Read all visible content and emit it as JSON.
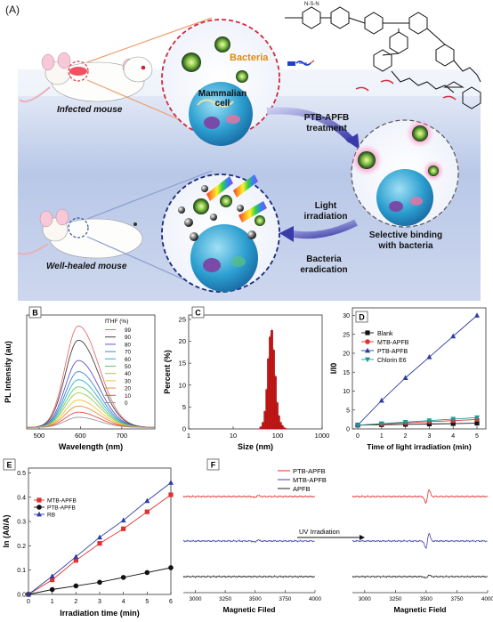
{
  "figure_label": "(A)",
  "panel_a": {
    "bacteria_label": "Bacteria",
    "cell_label": "Mammalian\ncell",
    "infected_label": "Infected mouse",
    "treatment_label": "PTB-APFB\ntreatment",
    "binding_label": "Selective binding\nwith bacteria",
    "light_label": "Light\nirradiation",
    "eradication_label": "Bacteria\neradication",
    "healed_label": "Well-healed mouse"
  },
  "panel_b": {
    "tag": "B",
    "ylabel": "PL Intensity (au)",
    "xlabel": "Wavelength (nm)",
    "xticks": [
      "500",
      "600",
      "700"
    ],
    "legend_title": "fTHF (%)",
    "fractions": [
      "99",
      "90",
      "80",
      "70",
      "60",
      "50",
      "40",
      "30",
      "20",
      "10",
      "0"
    ],
    "colors": [
      "#e76f6f",
      "#444444",
      "#6a4fc4",
      "#3a88d8",
      "#2ab0c8",
      "#60c870",
      "#9ccc4a",
      "#f0c03a",
      "#ef8f3a",
      "#e94b4b",
      "#999999"
    ],
    "chart_data": {
      "type": "line",
      "xlabel": "Wavelength (nm)",
      "ylabel": "PL Intensity (au)",
      "xlim": [
        470,
        780
      ],
      "peak_x": 595,
      "series": [
        {
          "name": "99",
          "peak": 1.0
        },
        {
          "name": "90",
          "peak": 0.86
        },
        {
          "name": "80",
          "peak": 0.66
        },
        {
          "name": "70",
          "peak": 0.55
        },
        {
          "name": "60",
          "peak": 0.47
        },
        {
          "name": "50",
          "peak": 0.4
        },
        {
          "name": "40",
          "peak": 0.34
        },
        {
          "name": "30",
          "peak": 0.27
        },
        {
          "name": "20",
          "peak": 0.21
        },
        {
          "name": "10",
          "peak": 0.15
        },
        {
          "name": "0",
          "peak": 0.1
        }
      ]
    }
  },
  "panel_c": {
    "tag": "C",
    "ylabel": "Percent (%)",
    "xlabel": "Size (nm)",
    "xticks": [
      "1",
      "10",
      "100",
      "1000"
    ],
    "yticks": [
      "0",
      "5",
      "10",
      "15",
      "20",
      "25"
    ],
    "chart_data": {
      "type": "bar",
      "xlabel": "Size (nm)",
      "ylabel": "Percent (%)",
      "ylim": [
        0,
        26
      ],
      "x_scale": "log",
      "categories": [
        42,
        47,
        52,
        57,
        62,
        68,
        74,
        81,
        89,
        97,
        106,
        116,
        127,
        139,
        152
      ],
      "values": [
        0.5,
        1.5,
        4,
        9,
        16,
        21,
        22.5,
        18,
        12,
        6,
        3,
        1.5,
        0.8,
        0.3,
        0.1
      ]
    }
  },
  "panel_d": {
    "tag": "D",
    "ylabel": "I/I0",
    "xlabel": "Time of light irradiation (min)",
    "xticks": [
      "0",
      "1",
      "2",
      "3",
      "4",
      "5"
    ],
    "yticks": [
      "0",
      "5",
      "10",
      "15",
      "20",
      "25",
      "30"
    ],
    "chart_data": {
      "type": "line",
      "xlabel": "Time of light irradiation (min)",
      "ylabel": "I/I0",
      "ylim": [
        0,
        32
      ],
      "x": [
        0,
        1,
        2,
        3,
        4,
        5
      ],
      "series": [
        {
          "name": "Blank",
          "color": "#111111",
          "marker": "square",
          "values": [
            1,
            1.1,
            1.2,
            1.3,
            1.4,
            1.5
          ]
        },
        {
          "name": "MTB-APFB",
          "color": "#e03030",
          "marker": "circle",
          "values": [
            1,
            1.3,
            1.6,
            1.9,
            2.2,
            2.5
          ]
        },
        {
          "name": "PTB-APFB",
          "color": "#2c3ea0",
          "marker": "triangle",
          "values": [
            1,
            7.5,
            13.5,
            19,
            24.5,
            30
          ]
        },
        {
          "name": "Chlorin E6",
          "color": "#1a9a9a",
          "marker": "triangle-down",
          "values": [
            1,
            1.4,
            1.8,
            2.2,
            2.6,
            3.0
          ]
        }
      ]
    }
  },
  "panel_e": {
    "tag": "E",
    "ylabel": "ln (A0/A)",
    "xlabel": "Irradiation time (min)",
    "xticks": [
      "0",
      "1",
      "2",
      "3",
      "4",
      "5",
      "6"
    ],
    "yticks": [
      "0.0",
      "0.1",
      "0.2",
      "0.3",
      "0.4",
      "0.5"
    ],
    "chart_data": {
      "type": "line",
      "xlabel": "Irradiation time (min)",
      "ylabel": "ln (A0/A)",
      "ylim": [
        0,
        0.52
      ],
      "x": [
        0,
        1,
        2,
        3,
        4,
        5,
        6
      ],
      "series": [
        {
          "name": "MTB-APFB",
          "color": "#e03030",
          "marker": "square",
          "values": [
            0,
            0.06,
            0.14,
            0.21,
            0.27,
            0.34,
            0.41
          ]
        },
        {
          "name": "PTB-APFB",
          "color": "#111111",
          "marker": "circle",
          "values": [
            0,
            0.02,
            0.035,
            0.05,
            0.07,
            0.09,
            0.11
          ]
        },
        {
          "name": "RB",
          "color": "#2c3ea0",
          "marker": "triangle",
          "values": [
            0,
            0.075,
            0.155,
            0.235,
            0.305,
            0.385,
            0.46
          ]
        }
      ]
    }
  },
  "panel_f": {
    "tag": "F",
    "legend": [
      "PTB-APFB",
      "MTB-APFB",
      "APFB"
    ],
    "legend_colors": [
      "#e03030",
      "#4040b0",
      "#222222"
    ],
    "arrow_label": "UV Irradiation",
    "xlabel_left": "Magnetic Filed",
    "xlabel_right": "Magnetic Field",
    "xticks": [
      "3000",
      "3250",
      "3500",
      "3750",
      "4000"
    ],
    "chart_data": {
      "type": "line",
      "xlabel": "Magnetic Field",
      "xlim": [
        2900,
        4000
      ],
      "signal_center": 3510
    }
  }
}
